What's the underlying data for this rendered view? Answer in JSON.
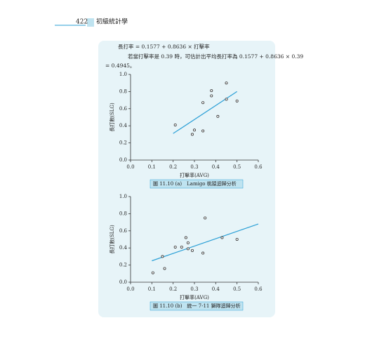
{
  "header": {
    "page": "422",
    "book": "初級統計學"
  },
  "text": {
    "line1": "長打率 = 0.1577 + 0.8636 × 打擊率",
    "line2": "若當打擊率是 0.39 時，可估計出平均長打率為 0.1577 + 0.8636 × 0.39",
    "line3": "= 0.4945。"
  },
  "chart_data": [
    {
      "type": "scatter",
      "caption": "圖 11.10 (a)　Lamigo 桃猿迴歸分析",
      "xlabel": "打擊率(AVG)",
      "ylabel": "長打數(SLG)",
      "x": [
        0.21,
        0.29,
        0.3,
        0.34,
        0.34,
        0.38,
        0.38,
        0.41,
        0.45,
        0.45,
        0.5
      ],
      "values": [
        0.41,
        0.3,
        0.35,
        0.34,
        0.67,
        0.75,
        0.81,
        0.51,
        0.9,
        0.71,
        0.69
      ],
      "color": "#333333",
      "trendline": {
        "x": [
          0.2,
          0.5
        ],
        "values": [
          0.31,
          0.8
        ],
        "color": "#2a9fd6"
      },
      "xlim": [
        0,
        0.6
      ],
      "ylim": [
        0,
        1
      ],
      "xticks": [
        {
          "value": 0,
          "label": "0.0"
        },
        0.1,
        0.2,
        0.3,
        0.4,
        0.5,
        0.6
      ],
      "yticks": [
        {
          "value": 0,
          "label": "0.0"
        },
        0.2,
        0.4,
        0.6,
        0.8,
        {
          "value": 1,
          "label": "1.0"
        }
      ]
    },
    {
      "type": "scatter",
      "caption": "圖 11.10 (b)　統一 7-11 獅隊迴歸分析",
      "xlabel": "打擊率(AVG)",
      "ylabel": "長打數(SLG)",
      "x": [
        0.105,
        0.15,
        0.16,
        0.21,
        0.24,
        0.26,
        0.27,
        0.27,
        0.29,
        0.34,
        0.35,
        0.43,
        0.5
      ],
      "values": [
        0.11,
        0.3,
        0.16,
        0.41,
        0.41,
        0.52,
        0.39,
        0.46,
        0.37,
        0.34,
        0.75,
        0.52,
        0.5
      ],
      "color": "#333333",
      "trendline": {
        "x": [
          0.1,
          0.6
        ],
        "values": [
          0.25,
          0.68
        ],
        "color": "#2a9fd6"
      },
      "xlim": [
        0,
        0.6
      ],
      "ylim": [
        0,
        1
      ],
      "xticks": [
        {
          "value": 0,
          "label": "0.0"
        },
        0.1,
        0.2,
        0.3,
        0.4,
        0.5,
        0.6
      ],
      "yticks": [
        {
          "value": 0,
          "label": "0.0"
        },
        0.2,
        0.4,
        0.6,
        0.8,
        {
          "value": 1,
          "label": "1.0"
        }
      ]
    }
  ]
}
